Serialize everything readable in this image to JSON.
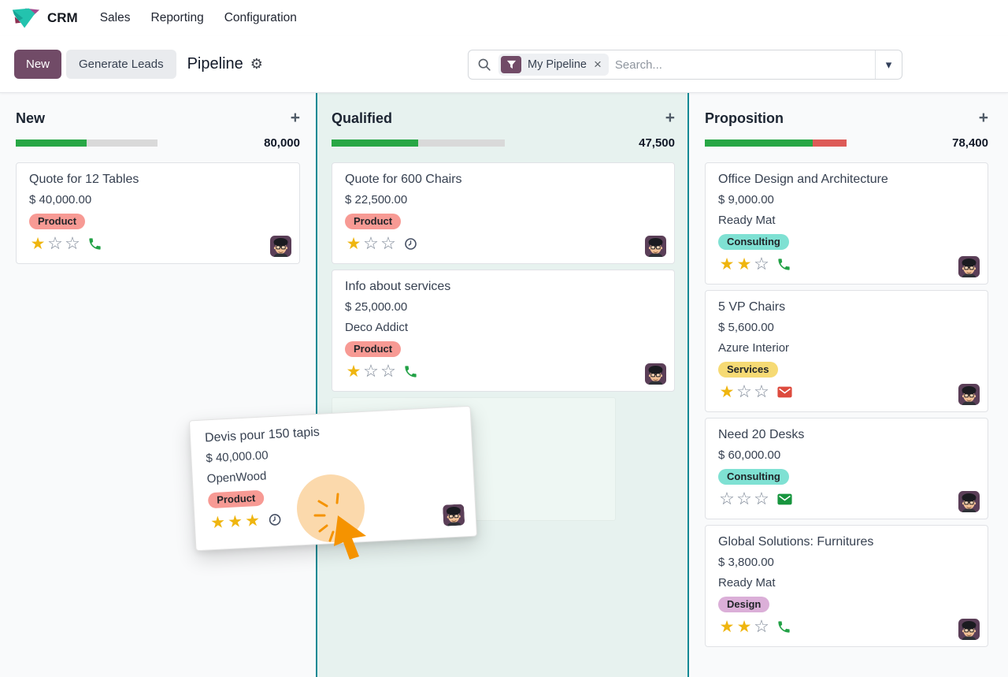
{
  "app": {
    "logo": "crm-app-icon",
    "name": "CRM",
    "menus": [
      {
        "label": "Sales"
      },
      {
        "label": "Reporting"
      },
      {
        "label": "Configuration"
      }
    ]
  },
  "control_panel": {
    "new_button": "New",
    "generate_leads_button": "Generate Leads",
    "title": "Pipeline",
    "settings_icon": "gear-icon",
    "search": {
      "search_icon": "magnifier-icon",
      "facet_icon": "filter-funnel-icon",
      "facet": "My Pipeline",
      "facet_remove_icon": "close-icon",
      "placeholder": "Search...",
      "dropdown_icon": "chevron-down-icon"
    }
  },
  "colors": {
    "brand": "#714B67",
    "progress_green": "#28a745",
    "progress_red": "#dd5a57",
    "column_highlight_border": "#0c8994",
    "column_highlight_bg": "#e7f2ef",
    "tag_product": "#f79a94",
    "tag_consulting": "#7fe1d3",
    "tag_services": "#f6da74",
    "tag_design": "#dbafd8",
    "star_on": "#efb50f"
  },
  "board": {
    "columns": [
      {
        "name": "New",
        "total": "80,000",
        "progress": {
          "green_pct": 50,
          "red_pct": 0
        },
        "cards": [
          {
            "title": "Quote for 12 Tables",
            "amount": "$ 40,000.00",
            "tag": "Product",
            "rating": 1,
            "rating_max": 3,
            "activity_icon": "phone"
          }
        ]
      },
      {
        "name": "Qualified",
        "total": "47,500",
        "highlighted_drop_target": true,
        "progress": {
          "green_pct": 50,
          "red_pct": 0
        },
        "cards": [
          {
            "title": "Quote for 600 Chairs",
            "amount": "$ 22,500.00",
            "tag": "Product",
            "rating": 1,
            "rating_max": 3,
            "activity_icon": "clock"
          },
          {
            "title": "Info about services",
            "amount": "$ 25,000.00",
            "company": "Deco Addict",
            "tag": "Product",
            "rating": 1,
            "rating_max": 3,
            "activity_icon": "phone"
          }
        ]
      },
      {
        "name": "Proposition",
        "total": "78,400",
        "progress": {
          "green_pct": 76,
          "red_pct": 24
        },
        "cards": [
          {
            "title": "Office Design and Architecture",
            "amount": "$ 9,000.00",
            "company": "Ready Mat",
            "tag": "Consulting",
            "rating": 2,
            "rating_max": 3,
            "activity_icon": "phone"
          },
          {
            "title": "5 VP Chairs",
            "amount": "$ 5,600.00",
            "company": "Azure Interior",
            "tag": "Services",
            "rating": 1,
            "rating_max": 3,
            "activity_icon": "envelope-red"
          },
          {
            "title": "Need 20 Desks",
            "amount": "$ 60,000.00",
            "tag": "Consulting",
            "rating": 0,
            "rating_max": 3,
            "activity_icon": "envelope-green"
          },
          {
            "title": "Global Solutions: Furnitures",
            "amount": "$ 3,800.00",
            "company": "Ready Mat",
            "tag": "Design",
            "rating": 2,
            "rating_max": 3,
            "activity_icon": "phone"
          }
        ]
      }
    ]
  },
  "dragged_card": {
    "title": "Devis pour 150 tapis",
    "amount": "$ 40,000.00",
    "company": "OpenWood",
    "tag": "Product",
    "rating": 3,
    "rating_max": 3,
    "activity_icon": "clock",
    "state": "being dragged over Qualified column with orange touch cursor"
  }
}
